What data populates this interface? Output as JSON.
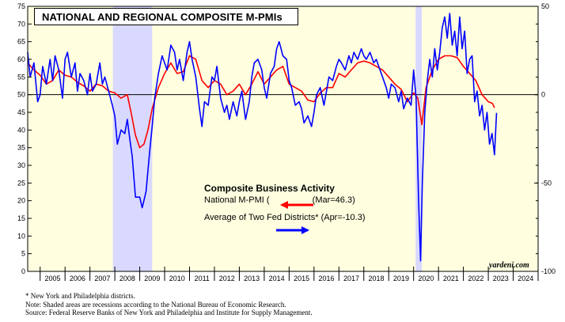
{
  "chart_data": {
    "type": "line",
    "title": "NATIONAL AND REGIONAL COMPOSITE M-PMIs",
    "legend": {
      "title": "Composite Business Activity",
      "placement": "center",
      "entries": [
        {
          "prefix": "National M-PMI (",
          "note": "(Mar=46.3)",
          "color": "#ff0000"
        },
        {
          "prefix": "Average of Two Fed Districts*",
          "note": "(Apr=-10.3)",
          "color": "#0000ff"
        }
      ]
    },
    "x_tick_labels": [
      "2005",
      "2006",
      "2007",
      "2008",
      "2009",
      "2010",
      "2011",
      "2012",
      "2013",
      "2014",
      "2015",
      "2016",
      "2017",
      "2018",
      "2019",
      "2020",
      "2021",
      "2022",
      "2023",
      "2024"
    ],
    "xlim": [
      2004.5,
      2025.0
    ],
    "left_axis": {
      "ylim": [
        0,
        75
      ],
      "tick_labels": [
        "0",
        "5",
        "10",
        "15",
        "20",
        "25",
        "30",
        "35",
        "40",
        "45",
        "50",
        "55",
        "60",
        "65",
        "70",
        "75"
      ]
    },
    "right_axis": {
      "ylim": [
        -100,
        50
      ],
      "tick_labels": [
        "50",
        "0",
        "-50",
        "-100"
      ]
    },
    "reference_line": {
      "axis": "left",
      "value": 50
    },
    "recessions": [
      [
        2007.92,
        2009.5
      ],
      [
        2020.08,
        2020.33
      ]
    ],
    "series": [
      {
        "name": "National M-PMI",
        "axis": "left",
        "color": "#ff0000",
        "points": [
          [
            2004.5,
            59
          ],
          [
            2004.75,
            57
          ],
          [
            2005.0,
            55.5
          ],
          [
            2005.25,
            53
          ],
          [
            2005.5,
            54
          ],
          [
            2005.75,
            57
          ],
          [
            2006.0,
            55.5
          ],
          [
            2006.25,
            55
          ],
          [
            2006.5,
            53.5
          ],
          [
            2006.75,
            52.5
          ],
          [
            2007.0,
            51
          ],
          [
            2007.25,
            53
          ],
          [
            2007.5,
            52.5
          ],
          [
            2007.75,
            51
          ],
          [
            2008.0,
            50.5
          ],
          [
            2008.25,
            49
          ],
          [
            2008.5,
            50
          ],
          [
            2008.65,
            45
          ],
          [
            2008.83,
            38.5
          ],
          [
            2009.0,
            35
          ],
          [
            2009.17,
            36
          ],
          [
            2009.33,
            40
          ],
          [
            2009.5,
            46
          ],
          [
            2009.75,
            52
          ],
          [
            2010.0,
            56
          ],
          [
            2010.25,
            59
          ],
          [
            2010.5,
            56
          ],
          [
            2010.75,
            56.5
          ],
          [
            2011.0,
            61
          ],
          [
            2011.25,
            60
          ],
          [
            2011.5,
            54
          ],
          [
            2011.75,
            52
          ],
          [
            2012.0,
            54
          ],
          [
            2012.25,
            53
          ],
          [
            2012.5,
            50
          ],
          [
            2012.75,
            51
          ],
          [
            2013.0,
            53
          ],
          [
            2013.25,
            50
          ],
          [
            2013.5,
            53
          ],
          [
            2013.75,
            56.5
          ],
          [
            2014.0,
            53
          ],
          [
            2014.25,
            55
          ],
          [
            2014.5,
            57
          ],
          [
            2014.75,
            58
          ],
          [
            2015.0,
            53
          ],
          [
            2015.25,
            52
          ],
          [
            2015.5,
            51
          ],
          [
            2015.75,
            48.5
          ],
          [
            2016.0,
            48
          ],
          [
            2016.25,
            50.5
          ],
          [
            2016.5,
            52
          ],
          [
            2016.75,
            52
          ],
          [
            2017.0,
            56
          ],
          [
            2017.25,
            55
          ],
          [
            2017.5,
            57
          ],
          [
            2017.75,
            59
          ],
          [
            2018.0,
            59.5
          ],
          [
            2018.25,
            59
          ],
          [
            2018.5,
            58
          ],
          [
            2018.75,
            57
          ],
          [
            2019.0,
            55
          ],
          [
            2019.25,
            53
          ],
          [
            2019.5,
            51.5
          ],
          [
            2019.75,
            48
          ],
          [
            2020.0,
            50.5
          ],
          [
            2020.17,
            49
          ],
          [
            2020.33,
            41.5
          ],
          [
            2020.5,
            52
          ],
          [
            2020.75,
            57
          ],
          [
            2021.0,
            60
          ],
          [
            2021.25,
            61
          ],
          [
            2021.5,
            61
          ],
          [
            2021.75,
            60.5
          ],
          [
            2022.0,
            58
          ],
          [
            2022.25,
            56
          ],
          [
            2022.5,
            54
          ],
          [
            2022.75,
            50
          ],
          [
            2023.0,
            48
          ],
          [
            2023.17,
            47.5
          ],
          [
            2023.25,
            46.3
          ]
        ]
      },
      {
        "name": "Average of Two Fed Districts",
        "axis": "right",
        "color": "#0000ff",
        "points": [
          [
            2004.5,
            24
          ],
          [
            2004.6,
            10
          ],
          [
            2004.75,
            18
          ],
          [
            2004.9,
            -4
          ],
          [
            2005.0,
            0
          ],
          [
            2005.1,
            16
          ],
          [
            2005.25,
            6
          ],
          [
            2005.4,
            20
          ],
          [
            2005.5,
            8
          ],
          [
            2005.6,
            22
          ],
          [
            2005.75,
            14
          ],
          [
            2005.9,
            -2
          ],
          [
            2006.0,
            20
          ],
          [
            2006.1,
            24
          ],
          [
            2006.25,
            10
          ],
          [
            2006.4,
            18
          ],
          [
            2006.5,
            2
          ],
          [
            2006.6,
            12
          ],
          [
            2006.75,
            8
          ],
          [
            2006.9,
            0
          ],
          [
            2007.0,
            12
          ],
          [
            2007.1,
            2
          ],
          [
            2007.25,
            6
          ],
          [
            2007.4,
            18
          ],
          [
            2007.5,
            6
          ],
          [
            2007.6,
            10
          ],
          [
            2007.75,
            2
          ],
          [
            2007.9,
            -6
          ],
          [
            2008.0,
            -12
          ],
          [
            2008.1,
            -28
          ],
          [
            2008.25,
            -20
          ],
          [
            2008.4,
            -22
          ],
          [
            2008.5,
            -14
          ],
          [
            2008.6,
            -25
          ],
          [
            2008.7,
            -35
          ],
          [
            2008.83,
            -58
          ],
          [
            2009.0,
            -58
          ],
          [
            2009.1,
            -64
          ],
          [
            2009.25,
            -55
          ],
          [
            2009.4,
            -32
          ],
          [
            2009.5,
            -18
          ],
          [
            2009.6,
            -2
          ],
          [
            2009.75,
            12
          ],
          [
            2009.9,
            22
          ],
          [
            2010.0,
            18
          ],
          [
            2010.1,
            14
          ],
          [
            2010.25,
            28
          ],
          [
            2010.4,
            24
          ],
          [
            2010.5,
            14
          ],
          [
            2010.6,
            20
          ],
          [
            2010.75,
            8
          ],
          [
            2010.9,
            24
          ],
          [
            2011.0,
            30
          ],
          [
            2011.1,
            20
          ],
          [
            2011.25,
            10
          ],
          [
            2011.4,
            -8
          ],
          [
            2011.5,
            -18
          ],
          [
            2011.6,
            -4
          ],
          [
            2011.75,
            -6
          ],
          [
            2011.9,
            10
          ],
          [
            2012.0,
            8
          ],
          [
            2012.1,
            16
          ],
          [
            2012.25,
            -2
          ],
          [
            2012.4,
            -10
          ],
          [
            2012.5,
            -6
          ],
          [
            2012.6,
            -14
          ],
          [
            2012.75,
            -4
          ],
          [
            2012.9,
            -12
          ],
          [
            2013.0,
            -4
          ],
          [
            2013.1,
            2
          ],
          [
            2013.25,
            -14
          ],
          [
            2013.4,
            -4
          ],
          [
            2013.5,
            10
          ],
          [
            2013.6,
            18
          ],
          [
            2013.75,
            20
          ],
          [
            2013.9,
            14
          ],
          [
            2014.0,
            4
          ],
          [
            2014.1,
            -2
          ],
          [
            2014.25,
            12
          ],
          [
            2014.4,
            16
          ],
          [
            2014.5,
            26
          ],
          [
            2014.6,
            30
          ],
          [
            2014.75,
            22
          ],
          [
            2014.9,
            20
          ],
          [
            2015.0,
            8
          ],
          [
            2015.1,
            4
          ],
          [
            2015.25,
            -6
          ],
          [
            2015.4,
            -4
          ],
          [
            2015.5,
            -8
          ],
          [
            2015.6,
            -16
          ],
          [
            2015.75,
            -12
          ],
          [
            2015.9,
            -18
          ],
          [
            2016.0,
            -10
          ],
          [
            2016.1,
            0
          ],
          [
            2016.25,
            4
          ],
          [
            2016.4,
            -6
          ],
          [
            2016.5,
            2
          ],
          [
            2016.6,
            10
          ],
          [
            2016.75,
            8
          ],
          [
            2016.9,
            16
          ],
          [
            2017.0,
            20
          ],
          [
            2017.1,
            18
          ],
          [
            2017.25,
            14
          ],
          [
            2017.4,
            22
          ],
          [
            2017.5,
            18
          ],
          [
            2017.6,
            24
          ],
          [
            2017.75,
            20
          ],
          [
            2017.9,
            26
          ],
          [
            2018.0,
            22
          ],
          [
            2018.1,
            20
          ],
          [
            2018.25,
            24
          ],
          [
            2018.4,
            18
          ],
          [
            2018.5,
            20
          ],
          [
            2018.6,
            16
          ],
          [
            2018.75,
            10
          ],
          [
            2018.9,
            4
          ],
          [
            2019.0,
            -2
          ],
          [
            2019.1,
            6
          ],
          [
            2019.25,
            4
          ],
          [
            2019.4,
            -4
          ],
          [
            2019.5,
            2
          ],
          [
            2019.6,
            -8
          ],
          [
            2019.75,
            -2
          ],
          [
            2019.9,
            -6
          ],
          [
            2020.0,
            14
          ],
          [
            2020.1,
            -2
          ],
          [
            2020.2,
            -60
          ],
          [
            2020.28,
            -94
          ],
          [
            2020.35,
            -50
          ],
          [
            2020.45,
            -10
          ],
          [
            2020.55,
            8
          ],
          [
            2020.65,
            20
          ],
          [
            2020.75,
            10
          ],
          [
            2020.85,
            26
          ],
          [
            2020.95,
            14
          ],
          [
            2021.05,
            24
          ],
          [
            2021.15,
            38
          ],
          [
            2021.25,
            44
          ],
          [
            2021.35,
            32
          ],
          [
            2021.45,
            46
          ],
          [
            2021.55,
            28
          ],
          [
            2021.65,
            36
          ],
          [
            2021.75,
            22
          ],
          [
            2021.85,
            44
          ],
          [
            2021.95,
            26
          ],
          [
            2022.05,
            36
          ],
          [
            2022.15,
            12
          ],
          [
            2022.25,
            20
          ],
          [
            2022.35,
            22
          ],
          [
            2022.45,
            -4
          ],
          [
            2022.55,
            2
          ],
          [
            2022.65,
            -12
          ],
          [
            2022.75,
            -6
          ],
          [
            2022.85,
            -20
          ],
          [
            2022.95,
            -10
          ],
          [
            2023.05,
            -28
          ],
          [
            2023.15,
            -22
          ],
          [
            2023.25,
            -34
          ],
          [
            2023.33,
            -10.3
          ]
        ]
      }
    ],
    "watermark": "yardeni.com",
    "footnotes": [
      "*  New York and Philadelphia districts.",
      "    Note: Shaded areas are recessions according to the National Bureau of Economic Research.",
      "    Source: Federal Reserve Banks of New York and Philadelphia and Institute for Supply Management."
    ]
  }
}
